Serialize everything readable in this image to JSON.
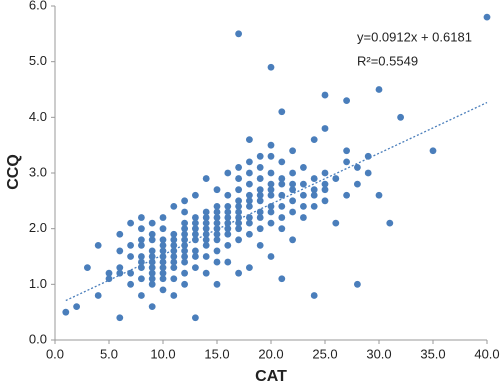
{
  "chart_data": {
    "type": "scatter",
    "x_label": "CAT",
    "y_label": "CCQ",
    "color": "#4a7ebb",
    "x": [
      1,
      2,
      3,
      4,
      4,
      5,
      5,
      6,
      6,
      6,
      6,
      6,
      7,
      7,
      7,
      7,
      7,
      8,
      8,
      8,
      8,
      8,
      8,
      8,
      8,
      8,
      9,
      9,
      9,
      9,
      9,
      9,
      9,
      9,
      9,
      9,
      9,
      10,
      10,
      10,
      10,
      10,
      10,
      10,
      10,
      10,
      10,
      10,
      11,
      11,
      11,
      11,
      11,
      11,
      11,
      11,
      11,
      11,
      12,
      12,
      12,
      12,
      12,
      12,
      12,
      12,
      12,
      12,
      12,
      12,
      13,
      13,
      13,
      13,
      13,
      13,
      13,
      13,
      13,
      13,
      14,
      14,
      14,
      14,
      14,
      14,
      14,
      14,
      14,
      14,
      15,
      15,
      15,
      15,
      15,
      15,
      15,
      15,
      15,
      15,
      15,
      16,
      16,
      16,
      16,
      16,
      16,
      16,
      16,
      16,
      16,
      17,
      17,
      17,
      17,
      17,
      17,
      17,
      17,
      17,
      17,
      17,
      17,
      18,
      18,
      18,
      18,
      18,
      18,
      18,
      18,
      18,
      18,
      18,
      19,
      19,
      19,
      19,
      19,
      19,
      19,
      19,
      19,
      19,
      20,
      20,
      20,
      20,
      20,
      20,
      20,
      20,
      20,
      20,
      20,
      21,
      21,
      21,
      21,
      21,
      21,
      21,
      21,
      21,
      22,
      22,
      22,
      22,
      22,
      22,
      22,
      23,
      23,
      23,
      23,
      23,
      24,
      24,
      24,
      24,
      24,
      24,
      25,
      25,
      25,
      25,
      25,
      25,
      26,
      26,
      27,
      27,
      27,
      27,
      28,
      28,
      28,
      29,
      29,
      30,
      30,
      31,
      32,
      35,
      40
    ],
    "values": [
      0.5,
      0.6,
      1.3,
      1.7,
      0.8,
      1.1,
      1.2,
      0.4,
      1.2,
      1.3,
      1.6,
      1.9,
      1.0,
      1.2,
      1.5,
      1.7,
      2.1,
      0.8,
      1.1,
      1.3,
      1.4,
      1.5,
      1.7,
      1.8,
      2.0,
      2.2,
      0.6,
      1.0,
      1.1,
      1.2,
      1.3,
      1.4,
      1.5,
      1.6,
      1.8,
      1.9,
      2.1,
      0.9,
      1.1,
      1.2,
      1.3,
      1.4,
      1.5,
      1.6,
      1.7,
      1.8,
      2.0,
      2.2,
      0.8,
      1.1,
      1.3,
      1.4,
      1.5,
      1.6,
      1.7,
      1.8,
      1.9,
      2.4,
      1.0,
      1.2,
      1.4,
      1.5,
      1.6,
      1.7,
      1.8,
      1.9,
      2.0,
      2.1,
      2.3,
      2.5,
      0.4,
      1.3,
      1.5,
      1.6,
      1.8,
      1.9,
      2.0,
      2.1,
      2.2,
      2.6,
      1.2,
      1.5,
      1.7,
      1.8,
      1.9,
      2.0,
      2.1,
      2.2,
      2.3,
      2.9,
      1.0,
      1.4,
      1.6,
      1.8,
      1.9,
      2.0,
      2.1,
      2.2,
      2.3,
      2.4,
      2.7,
      1.4,
      1.7,
      1.9,
      2.0,
      2.1,
      2.2,
      2.3,
      2.4,
      2.6,
      3.0,
      1.2,
      1.8,
      2.0,
      2.1,
      2.2,
      2.3,
      2.4,
      2.5,
      2.7,
      2.9,
      3.1,
      5.5,
      1.3,
      1.9,
      2.1,
      2.2,
      2.4,
      2.5,
      2.6,
      2.8,
      3.0,
      3.2,
      3.6,
      1.7,
      2.0,
      2.2,
      2.3,
      2.5,
      2.6,
      2.7,
      2.9,
      3.1,
      3.3,
      1.5,
      2.1,
      2.3,
      2.4,
      2.6,
      2.7,
      2.8,
      3.0,
      3.3,
      3.5,
      4.9,
      1.1,
      2.0,
      2.2,
      2.4,
      2.6,
      2.8,
      2.9,
      3.2,
      4.1,
      1.8,
      2.3,
      2.5,
      2.7,
      2.8,
      3.0,
      3.4,
      2.2,
      2.4,
      2.6,
      2.8,
      3.1,
      0.8,
      2.4,
      2.6,
      2.7,
      2.9,
      3.6,
      2.5,
      2.7,
      2.8,
      3.0,
      3.8,
      4.4,
      2.1,
      2.9,
      2.6,
      3.2,
      3.4,
      4.3,
      1.0,
      2.8,
      3.1,
      3.0,
      3.3,
      2.6,
      4.5,
      2.1,
      4.0,
      3.4,
      5.8
    ],
    "xlim": [
      0,
      40
    ],
    "ylim": [
      0,
      6
    ],
    "xticks": [
      {
        "value": 0,
        "label": "0.0"
      },
      {
        "value": 5,
        "label": "5.0"
      },
      {
        "value": 10,
        "label": "10.0"
      },
      {
        "value": 15,
        "label": "15.0"
      },
      {
        "value": 20,
        "label": "20.0"
      },
      {
        "value": 25,
        "label": "25.0"
      },
      {
        "value": 30,
        "label": "30.0"
      },
      {
        "value": 35,
        "label": "35.0"
      },
      {
        "value": 40,
        "label": "40.0"
      }
    ],
    "yticks": [
      {
        "value": 0,
        "label": "0.0"
      },
      {
        "value": 1,
        "label": "1.0"
      },
      {
        "value": 2,
        "label": "2.0"
      },
      {
        "value": 3,
        "label": "3.0"
      },
      {
        "value": 4,
        "label": "4.0"
      },
      {
        "value": 5,
        "label": "5.0"
      },
      {
        "value": 6,
        "label": "6.0"
      }
    ],
    "grid": false,
    "trendline": {
      "slope": 0.0912,
      "intercept": 0.6181,
      "x": [
        1,
        40
      ],
      "equation": "y=0.0912x + 0.6181",
      "r_squared": "R²=0.5549"
    }
  }
}
